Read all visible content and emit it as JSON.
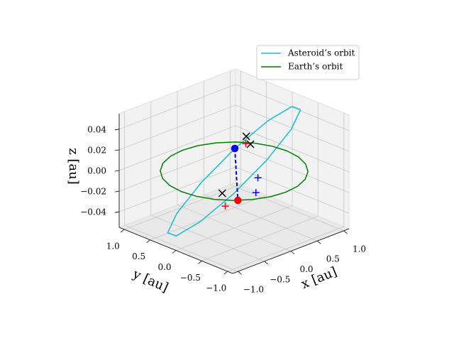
{
  "chart_data": {
    "type": "line3d",
    "xlabel": "x [au]",
    "ylabel": "y [au]",
    "zlabel": "z [au]",
    "xlim": [
      -1.1,
      1.1
    ],
    "ylim": [
      -1.1,
      1.1
    ],
    "zlim": [
      -0.055,
      0.055
    ],
    "xticks": [
      {
        "value": -1,
        "label": "−1.0"
      },
      {
        "value": -0.5,
        "label": "−0.5"
      },
      {
        "value": 0,
        "label": "0.0"
      },
      {
        "value": 0.5,
        "label": "0.5"
      },
      {
        "value": 1,
        "label": "1.0"
      }
    ],
    "yticks": [
      {
        "value": -1,
        "label": "−1.0"
      },
      {
        "value": -0.5,
        "label": "−0.5"
      },
      {
        "value": 0,
        "label": "0.0"
      },
      {
        "value": 0.5,
        "label": "0.5"
      },
      {
        "value": 1,
        "label": "1.0"
      }
    ],
    "zticks": [
      {
        "value": -0.04,
        "label": "−0.04"
      },
      {
        "value": -0.02,
        "label": "−0.02"
      },
      {
        "value": 0,
        "label": "0.00"
      },
      {
        "value": 0.02,
        "label": "0.02"
      },
      {
        "value": 0.04,
        "label": "0.04"
      }
    ],
    "grid": true,
    "legend": "upper right",
    "series": [
      {
        "name": "Asteroid’s orbit",
        "color": "#17becf",
        "x": [
          0.636,
          0.826,
          0.794,
          0.55,
          0.158,
          -0.276,
          -0.636,
          -0.826,
          -0.794,
          -0.55,
          -0.158,
          0.276,
          0.636
        ],
        "y": [
          -0.636,
          -0.276,
          0.158,
          0.55,
          0.794,
          0.826,
          0.636,
          0.276,
          -0.158,
          -0.55,
          -0.794,
          -0.826,
          -0.636
        ],
        "z": [
          0.06,
          0.052,
          0.03,
          0,
          -0.03,
          -0.052,
          -0.06,
          -0.052,
          -0.03,
          0,
          0.03,
          0.052,
          0.06
        ]
      },
      {
        "name": "Earth’s orbit",
        "color": "green",
        "x": [
          1,
          0.966,
          0.866,
          0.707,
          0.5,
          0.259,
          0,
          -0.259,
          -0.5,
          -0.707,
          -0.866,
          -0.966,
          -1,
          -0.966,
          -0.866,
          -0.707,
          -0.5,
          -0.259,
          0,
          0.259,
          0.5,
          0.707,
          0.866,
          0.966,
          1
        ],
        "y": [
          0,
          0.259,
          0.5,
          0.707,
          0.866,
          0.966,
          1,
          0.966,
          0.866,
          0.707,
          0.5,
          0.259,
          0,
          -0.259,
          -0.5,
          -0.707,
          -0.866,
          -0.966,
          -1,
          -0.966,
          -0.866,
          -0.707,
          -0.5,
          -0.259,
          0
        ],
        "z": [
          0,
          0,
          0,
          0,
          0,
          0,
          0,
          0,
          0,
          0,
          0,
          0,
          0,
          0,
          0,
          0,
          0,
          0,
          0,
          0,
          0,
          0,
          0,
          0,
          0
        ]
      },
      {
        "color": "blue",
        "dashed": true,
        "x": [
          0.55,
          -0.66
        ],
        "y": [
          0.55,
          -0.75
        ],
        "z": [
          0,
          0
        ]
      }
    ],
    "points": [
      {
        "marker": "x",
        "color": "black",
        "x": 0.21,
        "y": -0.02,
        "z": 0.03
      },
      {
        "marker": "x",
        "color": "black",
        "x": 0.31,
        "y": 0,
        "z": 0.02
      },
      {
        "marker": "x",
        "color": "black",
        "x": -0.395,
        "y": -0.175,
        "z": -0.01
      },
      {
        "marker": "+",
        "color": "red",
        "x": 0.28,
        "y": 0.06,
        "z": 0.02
      },
      {
        "marker": "+",
        "color": "red",
        "x": -0.425,
        "y": -0.265,
        "z": -0.02
      },
      {
        "marker": "+",
        "color": "blue",
        "x": 0.075,
        "y": -0.385,
        "z": 0
      },
      {
        "marker": "+",
        "color": "blue",
        "x": -0.3,
        "y": -0.73,
        "z": 0
      },
      {
        "marker": "o",
        "color": "blue",
        "x": 0.55,
        "y": 0.55,
        "z": 0
      },
      {
        "marker": "o",
        "color": "red",
        "x": -0.66,
        "y": -0.75,
        "z": 0
      }
    ]
  }
}
